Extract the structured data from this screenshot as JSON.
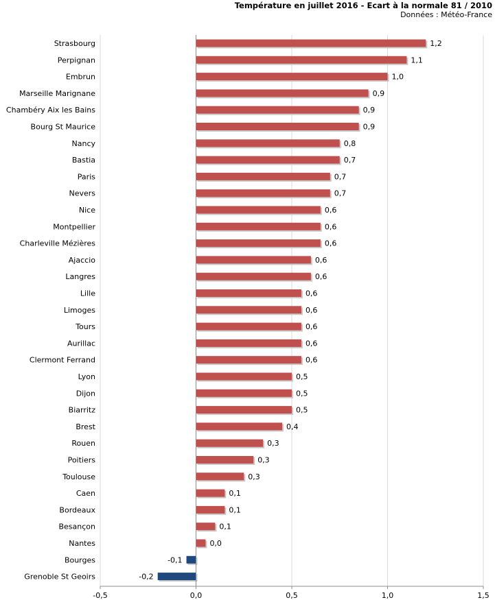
{
  "header": {
    "title": "Température en juillet 2016 - Ecart à la normale 81 / 2010",
    "subtitle": "Données : Météo-France"
  },
  "chart_data": {
    "type": "bar",
    "orientation": "horizontal",
    "title": "Température en juillet 2016 - Ecart à la normale 81 / 2010",
    "subtitle": "Données : Météo-France",
    "categories": [
      "Strasbourg",
      "Perpignan",
      "Embrun",
      "Marseille Marignane",
      "Chambéry Aix les Bains",
      "Bourg St Maurice",
      "Nancy",
      "Bastia",
      "Paris",
      "Nevers",
      "Nice",
      "Montpellier",
      "Charleville Mézières",
      "Ajaccio",
      "Langres",
      "Lille",
      "Limoges",
      "Tours",
      "Aurillac",
      "Clermont Ferrand",
      "Lyon",
      "Dijon",
      "Biarritz",
      "Brest",
      "Rouen",
      "Poitiers",
      "Toulouse",
      "Caen",
      "Bordeaux",
      "Besançon",
      "Nantes",
      "Bourges",
      "Grenoble St Geoirs"
    ],
    "values": [
      1.2,
      1.1,
      1.0,
      0.9,
      0.85,
      0.85,
      0.75,
      0.75,
      0.7,
      0.7,
      0.65,
      0.65,
      0.65,
      0.6,
      0.6,
      0.55,
      0.55,
      0.55,
      0.55,
      0.55,
      0.5,
      0.5,
      0.5,
      0.45,
      0.35,
      0.3,
      0.25,
      0.15,
      0.15,
      0.1,
      0.05,
      -0.05,
      -0.2
    ],
    "value_labels": [
      "1,2",
      "1,1",
      "1,0",
      "0,9",
      "0,9",
      "0,9",
      "0,8",
      "0,7",
      "0,7",
      "0,7",
      "0,6",
      "0,6",
      "0,6",
      "0,6",
      "0,6",
      "0,6",
      "0,6",
      "0,6",
      "0,6",
      "0,6",
      "0,5",
      "0,5",
      "0,5",
      "0,4",
      "0,3",
      "0,3",
      "0,3",
      "0,1",
      "0,1",
      "0,1",
      "0,0",
      "-0,1",
      "-0,2"
    ],
    "xlim": [
      -0.5,
      1.5
    ],
    "xticks": [
      -0.5,
      0.0,
      0.5,
      1.0,
      1.5
    ],
    "xtick_labels": [
      "-0,5",
      "0,0",
      "0,5",
      "1,0",
      "1,5"
    ],
    "grid": "vertical",
    "legend": "none",
    "colors": {
      "positive": "#c0504d",
      "negative": "#1f497d",
      "grid": "#d9d9d9",
      "axis": "#8c8c8c"
    }
  }
}
